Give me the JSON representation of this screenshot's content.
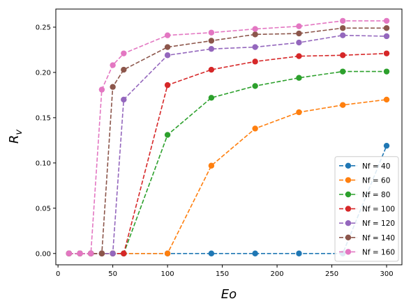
{
  "chart_data": {
    "type": "line",
    "xlabel": "Eo",
    "ylabel": "R_v",
    "xlim": [
      -2,
      314
    ],
    "ylim": [
      -0.0125,
      0.27
    ],
    "xticks": [
      0,
      50,
      100,
      150,
      200,
      250,
      300
    ],
    "yticks": [
      0.0,
      0.05,
      0.1,
      0.15,
      0.2,
      0.25
    ],
    "xtick_labels": [
      "0",
      "50",
      "100",
      "150",
      "200",
      "250",
      "300"
    ],
    "ytick_labels": [
      "0.00",
      "0.05",
      "0.10",
      "0.15",
      "0.20",
      "0.25"
    ],
    "grid": false,
    "legend_position": "lower-right",
    "line_style": "dashed",
    "marker": "circle",
    "series": [
      {
        "name": "Nf =  40",
        "color": "#1f77b4",
        "points": [
          [
            10,
            0
          ],
          [
            20,
            0
          ],
          [
            30,
            0
          ],
          [
            40,
            0
          ],
          [
            50,
            0
          ],
          [
            60,
            0
          ],
          [
            100,
            0
          ],
          [
            140,
            0
          ],
          [
            180,
            0
          ],
          [
            220,
            0
          ],
          [
            260,
            0
          ],
          [
            300,
            0.119
          ]
        ]
      },
      {
        "name": "Nf =  60",
        "color": "#ff7f0e",
        "points": [
          [
            10,
            0
          ],
          [
            20,
            0
          ],
          [
            30,
            0
          ],
          [
            40,
            0
          ],
          [
            50,
            0
          ],
          [
            60,
            0
          ],
          [
            100,
            0
          ],
          [
            140,
            0.097
          ],
          [
            180,
            0.138
          ],
          [
            220,
            0.156
          ],
          [
            260,
            0.164
          ],
          [
            300,
            0.17
          ]
        ]
      },
      {
        "name": "Nf =  80",
        "color": "#2ca02c",
        "points": [
          [
            10,
            0
          ],
          [
            20,
            0
          ],
          [
            30,
            0
          ],
          [
            40,
            0
          ],
          [
            50,
            0
          ],
          [
            60,
            0
          ],
          [
            100,
            0.131
          ],
          [
            140,
            0.172
          ],
          [
            180,
            0.185
          ],
          [
            220,
            0.194
          ],
          [
            260,
            0.201
          ],
          [
            300,
            0.201
          ]
        ]
      },
      {
        "name": "Nf =  100",
        "color": "#d62728",
        "points": [
          [
            10,
            0
          ],
          [
            20,
            0
          ],
          [
            30,
            0
          ],
          [
            40,
            0
          ],
          [
            50,
            0
          ],
          [
            60,
            0
          ],
          [
            100,
            0.186
          ],
          [
            140,
            0.203
          ],
          [
            180,
            0.212
          ],
          [
            220,
            0.218
          ],
          [
            260,
            0.219
          ],
          [
            300,
            0.221
          ]
        ]
      },
      {
        "name": "Nf =  120",
        "color": "#9467bd",
        "points": [
          [
            10,
            0
          ],
          [
            20,
            0
          ],
          [
            30,
            0
          ],
          [
            40,
            0
          ],
          [
            50,
            0
          ],
          [
            60,
            0.17
          ],
          [
            100,
            0.219
          ],
          [
            140,
            0.226
          ],
          [
            180,
            0.228
          ],
          [
            220,
            0.233
          ],
          [
            260,
            0.241
          ],
          [
            300,
            0.24
          ]
        ]
      },
      {
        "name": "Nf =  140",
        "color": "#8c564b",
        "points": [
          [
            10,
            0
          ],
          [
            20,
            0
          ],
          [
            30,
            0
          ],
          [
            40,
            0
          ],
          [
            50,
            0.184
          ],
          [
            60,
            0.203
          ],
          [
            100,
            0.228
          ],
          [
            140,
            0.235
          ],
          [
            180,
            0.242
          ],
          [
            220,
            0.243
          ],
          [
            260,
            0.249
          ],
          [
            300,
            0.249
          ]
        ]
      },
      {
        "name": "Nf =  160",
        "color": "#e377c2",
        "points": [
          [
            10,
            0
          ],
          [
            20,
            0
          ],
          [
            30,
            0
          ],
          [
            40,
            0.181
          ],
          [
            50,
            0.208
          ],
          [
            60,
            0.221
          ],
          [
            100,
            0.241
          ],
          [
            140,
            0.244
          ],
          [
            180,
            0.248
          ],
          [
            220,
            0.251
          ],
          [
            260,
            0.257
          ],
          [
            300,
            0.257
          ]
        ]
      }
    ]
  }
}
